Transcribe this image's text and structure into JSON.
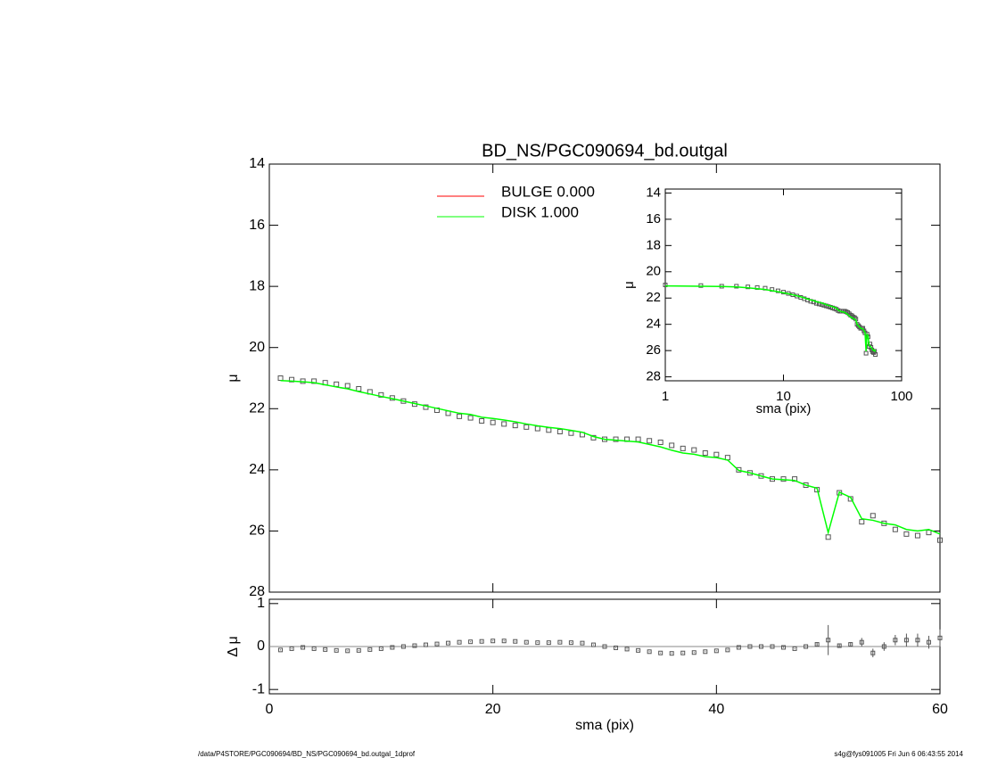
{
  "chart_data": [
    {
      "type": "scatter",
      "title": "BD_NS/PGC090694_bd.outgal",
      "y_label": "μ",
      "xlim": [
        0,
        60
      ],
      "xticks": [
        0,
        20,
        40,
        60
      ],
      "ylim": [
        28,
        14
      ],
      "yticks": [
        14,
        16,
        18,
        20,
        22,
        24,
        26,
        28
      ],
      "legend": [
        {
          "label": "BULGE  0.000",
          "color": "#ff0000"
        },
        {
          "label": "DISK  1.000",
          "color": "#00ff00"
        }
      ],
      "x": [
        1,
        2,
        3,
        4,
        5,
        6,
        7,
        8,
        9,
        10,
        11,
        12,
        13,
        14,
        15,
        16,
        17,
        18,
        19,
        20,
        21,
        22,
        23,
        24,
        25,
        26,
        27,
        28,
        29,
        30,
        31,
        32,
        33,
        34,
        35,
        36,
        37,
        38,
        39,
        40,
        41,
        42,
        43,
        44,
        45,
        46,
        47,
        48,
        49,
        50,
        51,
        52,
        53,
        54,
        55,
        56,
        57,
        58,
        59,
        60
      ],
      "series": [
        {
          "marker": "square",
          "color": "#555555",
          "values": [
            21.0,
            21.05,
            21.1,
            21.1,
            21.15,
            21.2,
            21.25,
            21.35,
            21.45,
            21.55,
            21.65,
            21.75,
            21.85,
            21.95,
            22.05,
            22.15,
            22.25,
            22.3,
            22.4,
            22.45,
            22.5,
            22.55,
            22.6,
            22.65,
            22.7,
            22.75,
            22.8,
            22.85,
            22.95,
            23.0,
            23.0,
            23.0,
            23.0,
            23.05,
            23.1,
            23.2,
            23.3,
            23.35,
            23.45,
            23.5,
            23.6,
            24.0,
            24.1,
            24.2,
            24.3,
            24.3,
            24.3,
            24.5,
            24.65,
            26.2,
            24.75,
            24.95,
            25.7,
            25.5,
            25.75,
            25.95,
            26.1,
            26.15,
            26.05,
            26.3
          ]
        },
        {
          "marker": "line",
          "color": "#00ff00",
          "values": [
            21.08,
            21.1,
            21.12,
            21.15,
            21.22,
            21.29,
            21.35,
            21.44,
            21.52,
            21.6,
            21.67,
            21.75,
            21.83,
            21.91,
            21.99,
            22.07,
            22.15,
            22.19,
            22.28,
            22.32,
            22.37,
            22.43,
            22.5,
            22.56,
            22.61,
            22.65,
            22.71,
            22.77,
            22.91,
            23.0,
            23.03,
            23.06,
            23.09,
            23.17,
            23.25,
            23.36,
            23.45,
            23.49,
            23.57,
            23.6,
            23.68,
            24.02,
            24.1,
            24.2,
            24.3,
            24.32,
            24.35,
            24.5,
            24.6,
            26.05,
            24.73,
            24.9,
            25.6,
            25.65,
            25.75,
            25.8,
            25.95,
            26.0,
            25.95,
            26.1
          ]
        }
      ]
    },
    {
      "type": "errorbar",
      "x_label": "sma (pix)",
      "y_label": "Δ μ",
      "xlim": [
        0,
        60
      ],
      "xticks": [
        0,
        20,
        40,
        60
      ],
      "ylim": [
        -1.1,
        1.1
      ],
      "yticks": [
        -1,
        0,
        1
      ],
      "x": [
        1,
        2,
        3,
        4,
        5,
        6,
        7,
        8,
        9,
        10,
        11,
        12,
        13,
        14,
        15,
        16,
        17,
        18,
        19,
        20,
        21,
        22,
        23,
        24,
        25,
        26,
        27,
        28,
        29,
        30,
        31,
        32,
        33,
        34,
        35,
        36,
        37,
        38,
        39,
        40,
        41,
        42,
        43,
        44,
        45,
        46,
        47,
        48,
        49,
        50,
        51,
        52,
        53,
        54,
        55,
        56,
        57,
        58,
        59,
        60
      ],
      "series": [
        {
          "marker": "square",
          "color": "#555555",
          "values": [
            -0.08,
            -0.05,
            -0.02,
            -0.05,
            -0.07,
            -0.09,
            -0.1,
            -0.09,
            -0.07,
            -0.05,
            -0.02,
            0.0,
            0.02,
            0.04,
            0.06,
            0.08,
            0.1,
            0.11,
            0.12,
            0.13,
            0.13,
            0.12,
            0.1,
            0.09,
            0.09,
            0.1,
            0.09,
            0.08,
            0.04,
            0.0,
            -0.03,
            -0.06,
            -0.09,
            -0.12,
            -0.15,
            -0.16,
            -0.15,
            -0.14,
            -0.12,
            -0.1,
            -0.08,
            -0.02,
            0.0,
            0.0,
            0.0,
            -0.02,
            -0.05,
            0.0,
            0.05,
            0.15,
            0.02,
            0.05,
            0.1,
            -0.15,
            0.0,
            0.15,
            0.15,
            0.15,
            0.1,
            0.2
          ],
          "errors": [
            0.01,
            0.01,
            0.01,
            0.01,
            0.01,
            0.01,
            0.01,
            0.01,
            0.01,
            0.01,
            0.01,
            0.01,
            0.01,
            0.01,
            0.01,
            0.01,
            0.01,
            0.01,
            0.01,
            0.01,
            0.01,
            0.01,
            0.01,
            0.01,
            0.01,
            0.01,
            0.01,
            0.01,
            0.01,
            0.01,
            0.01,
            0.01,
            0.01,
            0.01,
            0.01,
            0.01,
            0.01,
            0.01,
            0.01,
            0.01,
            0.01,
            0.01,
            0.01,
            0.01,
            0.01,
            0.01,
            0.01,
            0.01,
            0.03,
            0.35,
            0.03,
            0.05,
            0.1,
            0.1,
            0.1,
            0.12,
            0.15,
            0.15,
            0.15,
            0.2
          ]
        }
      ]
    },
    {
      "type": "inset",
      "x_label": "sma (pix)",
      "y_label": "μ",
      "log_x": true,
      "xlim": [
        1,
        100
      ],
      "xticks": [
        1,
        10,
        100
      ],
      "ylim": [
        28.3,
        13.7
      ],
      "yticks": [
        14,
        16,
        18,
        20,
        22,
        24,
        26,
        28
      ]
    }
  ],
  "footer": {
    "left": "/data/P4STORE/PGC090694/BD_NS/PGC090694_bd.outgal_1dprof",
    "right": "s4g@fys091005  Fri Jun  6 06:43:55 2014"
  }
}
